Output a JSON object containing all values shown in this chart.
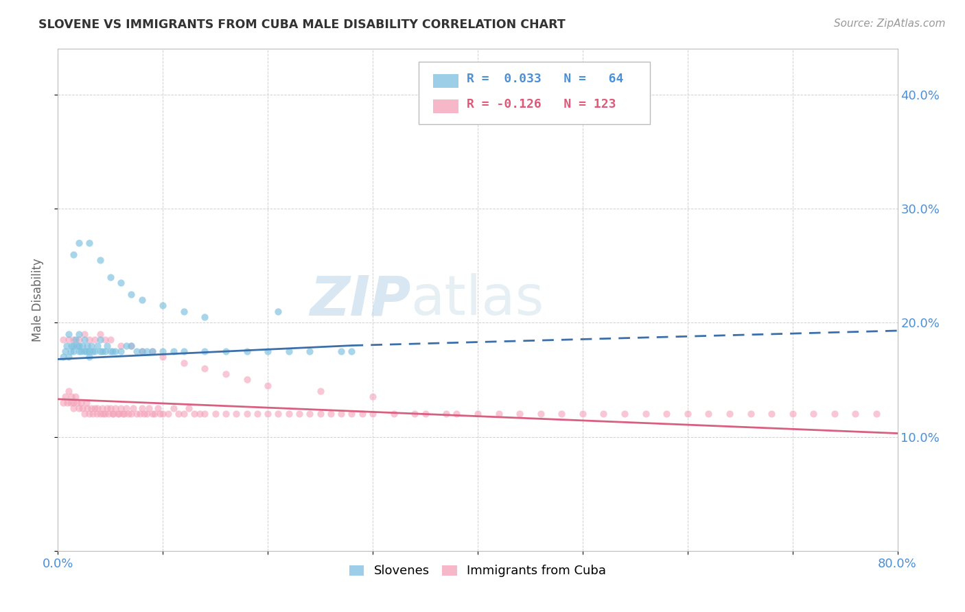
{
  "title": "SLOVENE VS IMMIGRANTS FROM CUBA MALE DISABILITY CORRELATION CHART",
  "source_text": "Source: ZipAtlas.com",
  "ylabel": "Male Disability",
  "xlim": [
    0.0,
    0.8
  ],
  "ylim": [
    0.0,
    0.44
  ],
  "xticks": [
    0.0,
    0.1,
    0.2,
    0.3,
    0.4,
    0.5,
    0.6,
    0.7,
    0.8
  ],
  "xticklabels": [
    "0.0%",
    "",
    "",
    "",
    "",
    "",
    "",
    "",
    "80.0%"
  ],
  "yticks": [
    0.0,
    0.1,
    0.2,
    0.3,
    0.4
  ],
  "yticklabels": [
    "",
    "10.0%",
    "20.0%",
    "30.0%",
    "40.0%"
  ],
  "color_slovene": "#7bbfdf",
  "color_cuba": "#f4a0b8",
  "color_trend_slovene": "#3a6faa",
  "color_trend_cuba": "#d95f80",
  "color_axis_labels": "#4a90d9",
  "color_title": "#333333",
  "watermark_zip": "ZIP",
  "watermark_atlas": "atlas",
  "slovene_x": [
    0.005,
    0.007,
    0.008,
    0.01,
    0.01,
    0.012,
    0.013,
    0.015,
    0.015,
    0.017,
    0.018,
    0.02,
    0.02,
    0.02,
    0.022,
    0.023,
    0.025,
    0.025,
    0.027,
    0.028,
    0.03,
    0.03,
    0.032,
    0.033,
    0.035,
    0.038,
    0.04,
    0.04,
    0.042,
    0.045,
    0.047,
    0.05,
    0.052,
    0.055,
    0.06,
    0.065,
    0.07,
    0.075,
    0.08,
    0.085,
    0.09,
    0.1,
    0.11,
    0.12,
    0.14,
    0.16,
    0.18,
    0.2,
    0.22,
    0.24,
    0.27,
    0.015,
    0.02,
    0.03,
    0.04,
    0.05,
    0.06,
    0.07,
    0.08,
    0.1,
    0.12,
    0.14,
    0.21,
    0.28
  ],
  "slovene_y": [
    0.17,
    0.175,
    0.18,
    0.17,
    0.19,
    0.175,
    0.18,
    0.175,
    0.18,
    0.185,
    0.18,
    0.175,
    0.18,
    0.19,
    0.175,
    0.18,
    0.175,
    0.185,
    0.175,
    0.18,
    0.17,
    0.175,
    0.18,
    0.175,
    0.175,
    0.18,
    0.175,
    0.185,
    0.175,
    0.175,
    0.18,
    0.175,
    0.175,
    0.175,
    0.175,
    0.18,
    0.18,
    0.175,
    0.175,
    0.175,
    0.175,
    0.175,
    0.175,
    0.175,
    0.175,
    0.175,
    0.175,
    0.175,
    0.175,
    0.175,
    0.175,
    0.26,
    0.27,
    0.27,
    0.255,
    0.24,
    0.235,
    0.225,
    0.22,
    0.215,
    0.21,
    0.205,
    0.21,
    0.175
  ],
  "cuba_x": [
    0.005,
    0.007,
    0.009,
    0.01,
    0.012,
    0.013,
    0.015,
    0.015,
    0.017,
    0.018,
    0.02,
    0.022,
    0.023,
    0.025,
    0.027,
    0.028,
    0.03,
    0.032,
    0.033,
    0.035,
    0.037,
    0.038,
    0.04,
    0.042,
    0.043,
    0.045,
    0.047,
    0.048,
    0.05,
    0.052,
    0.053,
    0.055,
    0.057,
    0.058,
    0.06,
    0.062,
    0.063,
    0.065,
    0.067,
    0.07,
    0.072,
    0.075,
    0.078,
    0.08,
    0.082,
    0.085,
    0.087,
    0.09,
    0.092,
    0.095,
    0.097,
    0.1,
    0.105,
    0.11,
    0.115,
    0.12,
    0.125,
    0.13,
    0.135,
    0.14,
    0.15,
    0.16,
    0.17,
    0.18,
    0.19,
    0.2,
    0.21,
    0.22,
    0.23,
    0.24,
    0.25,
    0.26,
    0.27,
    0.28,
    0.29,
    0.3,
    0.32,
    0.34,
    0.35,
    0.37,
    0.38,
    0.4,
    0.42,
    0.44,
    0.46,
    0.48,
    0.5,
    0.52,
    0.54,
    0.56,
    0.58,
    0.6,
    0.62,
    0.64,
    0.66,
    0.68,
    0.7,
    0.72,
    0.74,
    0.76,
    0.78,
    0.005,
    0.01,
    0.015,
    0.02,
    0.025,
    0.03,
    0.035,
    0.04,
    0.045,
    0.05,
    0.06,
    0.07,
    0.08,
    0.09,
    0.1,
    0.12,
    0.14,
    0.16,
    0.18,
    0.2,
    0.25,
    0.3
  ],
  "cuba_y": [
    0.13,
    0.135,
    0.13,
    0.14,
    0.13,
    0.135,
    0.13,
    0.125,
    0.135,
    0.13,
    0.125,
    0.13,
    0.125,
    0.12,
    0.13,
    0.125,
    0.12,
    0.125,
    0.12,
    0.125,
    0.12,
    0.125,
    0.12,
    0.125,
    0.12,
    0.12,
    0.125,
    0.12,
    0.125,
    0.12,
    0.12,
    0.125,
    0.12,
    0.12,
    0.125,
    0.12,
    0.12,
    0.125,
    0.12,
    0.12,
    0.125,
    0.12,
    0.12,
    0.125,
    0.12,
    0.12,
    0.125,
    0.12,
    0.12,
    0.125,
    0.12,
    0.12,
    0.12,
    0.125,
    0.12,
    0.12,
    0.125,
    0.12,
    0.12,
    0.12,
    0.12,
    0.12,
    0.12,
    0.12,
    0.12,
    0.12,
    0.12,
    0.12,
    0.12,
    0.12,
    0.12,
    0.12,
    0.12,
    0.12,
    0.12,
    0.12,
    0.12,
    0.12,
    0.12,
    0.12,
    0.12,
    0.12,
    0.12,
    0.12,
    0.12,
    0.12,
    0.12,
    0.12,
    0.12,
    0.12,
    0.12,
    0.12,
    0.12,
    0.12,
    0.12,
    0.12,
    0.12,
    0.12,
    0.12,
    0.12,
    0.12,
    0.185,
    0.185,
    0.185,
    0.185,
    0.19,
    0.185,
    0.185,
    0.19,
    0.185,
    0.185,
    0.18,
    0.18,
    0.175,
    0.175,
    0.17,
    0.165,
    0.16,
    0.155,
    0.15,
    0.145,
    0.14,
    0.135
  ],
  "trend_slovene_x0": 0.0,
  "trend_slovene_x1": 0.28,
  "trend_slovene_y0": 0.168,
  "trend_slovene_y1": 0.18,
  "trend_slovene_dash_x0": 0.28,
  "trend_slovene_dash_x1": 0.8,
  "trend_slovene_dash_y0": 0.18,
  "trend_slovene_dash_y1": 0.193,
  "trend_cuba_x0": 0.0,
  "trend_cuba_x1": 0.8,
  "trend_cuba_y0": 0.133,
  "trend_cuba_y1": 0.103
}
